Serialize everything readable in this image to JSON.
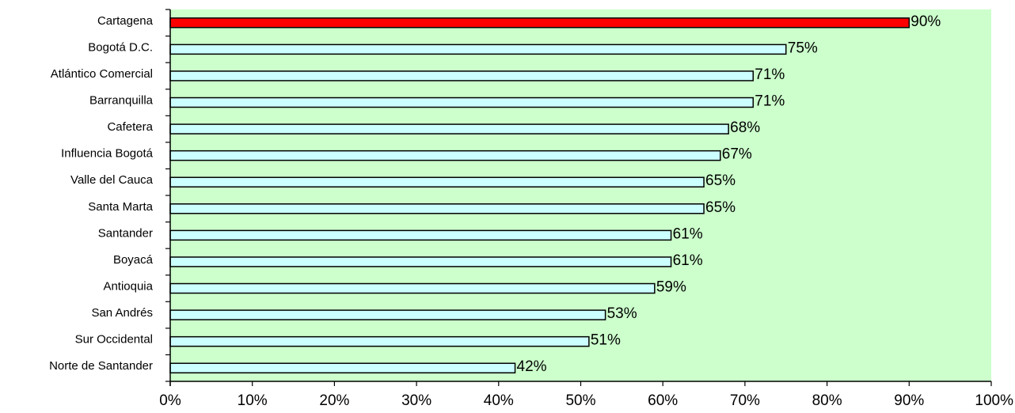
{
  "chart_data": {
    "type": "bar",
    "orientation": "horizontal",
    "title": "",
    "xlabel": "",
    "ylabel": "",
    "xlim": [
      0,
      100
    ],
    "x_ticks": [
      "0%",
      "10%",
      "20%",
      "30%",
      "40%",
      "50%",
      "60%",
      "70%",
      "80%",
      "90%",
      "100%"
    ],
    "grid": false,
    "legend": "none",
    "categories": [
      "Cartagena",
      "Bogotá D.C.",
      "Atlántico Comercial",
      "Barranquilla",
      "Cafetera",
      "Influencia Bogotá",
      "Valle del Cauca",
      "Santa Marta",
      "Santander",
      "Boyacá",
      "Antioquia",
      "San Andrés",
      "Sur Occidental",
      "Norte de Santander"
    ],
    "values": [
      90,
      75,
      71,
      71,
      68,
      67,
      65,
      65,
      61,
      61,
      59,
      53,
      51,
      42
    ],
    "value_labels": [
      "90%",
      "75%",
      "71%",
      "71%",
      "68%",
      "67%",
      "65%",
      "65%",
      "61%",
      "61%",
      "59%",
      "53%",
      "51%",
      "42%"
    ],
    "highlight_index": 0,
    "colors": {
      "plot_background": "#ccffcc",
      "bar_fill": "#ccffff",
      "highlight_fill": "#ff0000",
      "bar_stroke": "#000000"
    }
  }
}
